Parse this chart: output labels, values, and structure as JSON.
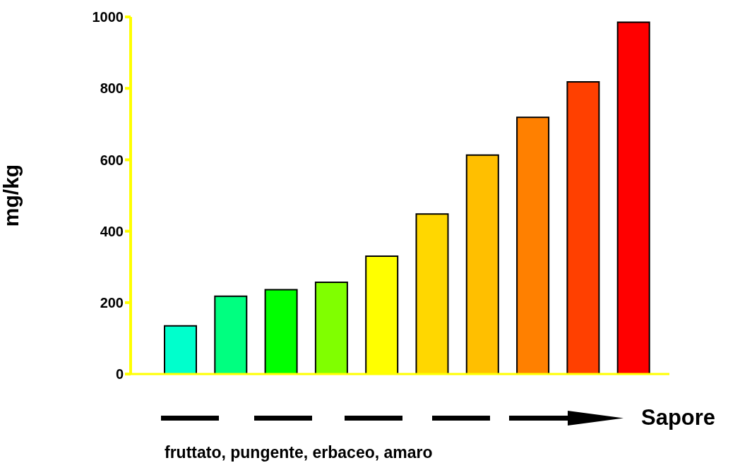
{
  "chart_data": {
    "type": "bar",
    "ylabel": "mg/kg",
    "xlabel": "Sapore",
    "annotations": [
      "fruttato, pungente, erbaceo, amaro"
    ],
    "categories": [
      null,
      null,
      null,
      null,
      null,
      null,
      null,
      null,
      null,
      null
    ],
    "values": [
      135,
      218,
      236,
      257,
      330,
      448,
      613,
      719,
      818,
      985
    ],
    "colors": [
      "#00ffcc",
      "#00ff80",
      "#00ff00",
      "#80ff00",
      "#ffff00",
      "#ffd700",
      "#ffbf00",
      "#ff8000",
      "#ff4000",
      "#ff0000"
    ],
    "ylim": [
      0,
      1000
    ],
    "yticks": [
      0,
      200,
      400,
      600,
      800,
      1000
    ],
    "grid": false,
    "legend": false
  }
}
